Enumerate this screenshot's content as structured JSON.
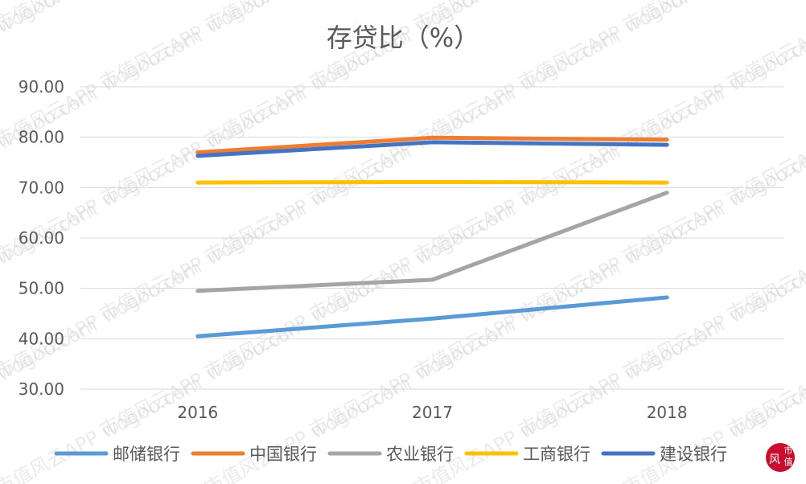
{
  "chart_data": {
    "type": "line",
    "title": "存贷比（%）",
    "categories": [
      "2016",
      "2017",
      "2018"
    ],
    "ylim": [
      30,
      90
    ],
    "yticks": [
      "30.00",
      "40.00",
      "50.00",
      "60.00",
      "70.00",
      "80.00",
      "90.00"
    ],
    "grid": true,
    "legend_position": "bottom",
    "series": [
      {
        "name": "邮储银行",
        "color": "#5b9bd5",
        "values": [
          40.5,
          44.0,
          48.2
        ]
      },
      {
        "name": "中国银行",
        "color": "#ed7d31",
        "values": [
          77.0,
          79.9,
          79.5
        ]
      },
      {
        "name": "农业银行",
        "color": "#a5a5a5",
        "values": [
          49.5,
          51.7,
          69.0
        ]
      },
      {
        "name": "工商银行",
        "color": "#ffc000",
        "values": [
          71.0,
          71.1,
          71.0
        ]
      },
      {
        "name": "建设银行",
        "color": "#4472c4",
        "values": [
          76.3,
          79.0,
          78.5
        ]
      }
    ]
  },
  "watermark": {
    "text": "市值风云APP  wogoo.com"
  },
  "logo": {
    "text": "市值风云",
    "color": "#c8102e"
  }
}
